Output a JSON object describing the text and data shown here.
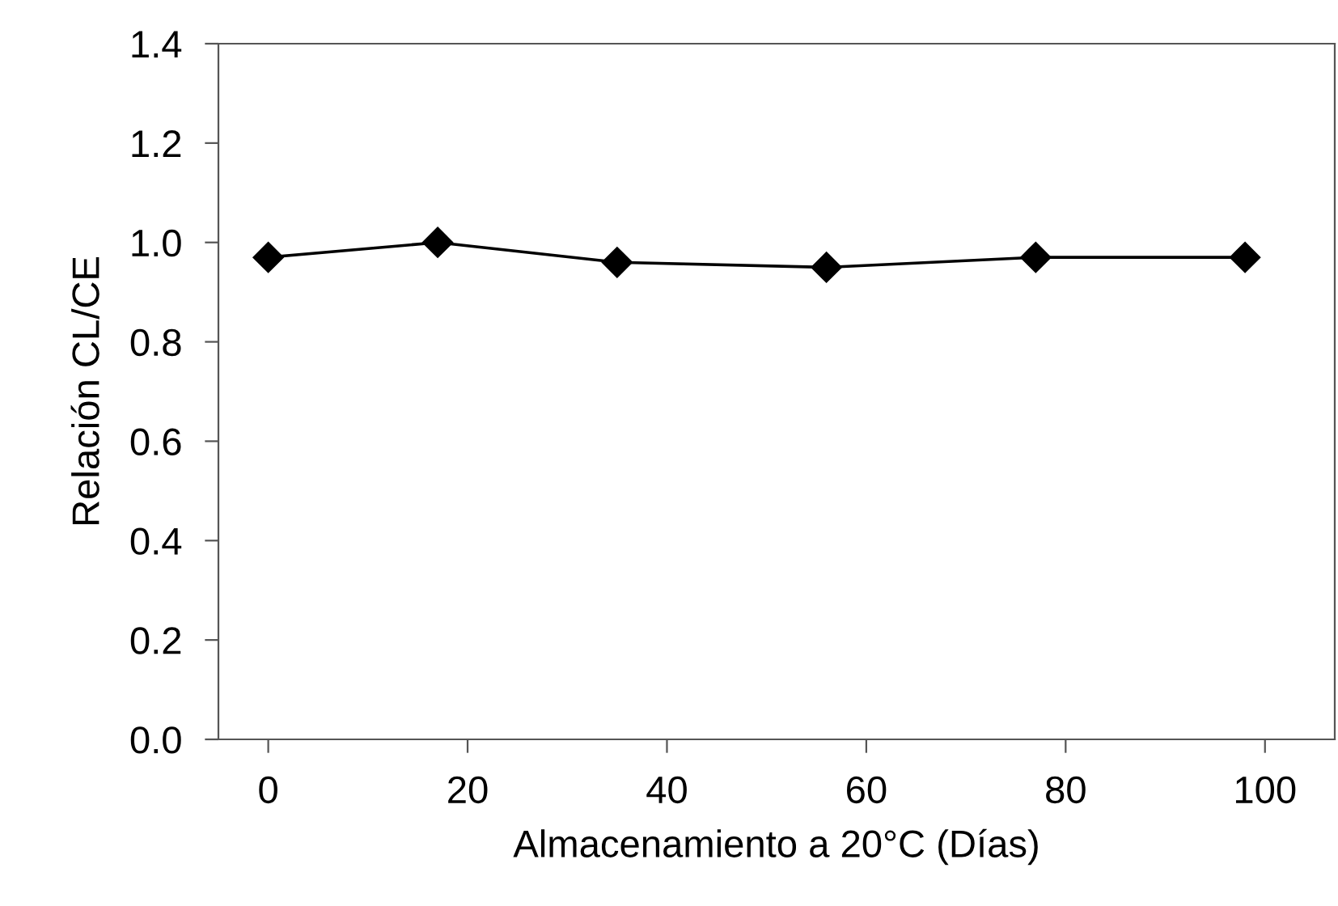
{
  "chart_data": {
    "type": "line",
    "xlabel": "Almacenamiento a 20°C (Días)",
    "ylabel": "Relación CL/CE",
    "x": [
      0,
      17,
      35,
      56,
      77,
      98
    ],
    "series": [
      {
        "color": "#000000",
        "values": [
          0.97,
          1.0,
          0.96,
          0.95,
          0.97,
          0.97
        ]
      }
    ],
    "xlim": [
      -5,
      107
    ],
    "xticks": [
      0,
      20,
      40,
      60,
      80,
      100
    ],
    "ylim": [
      0,
      1.4
    ],
    "yticks": [
      {
        "value": 0,
        "label": "0.0"
      },
      {
        "value": 0.2,
        "label": "0.2"
      },
      {
        "value": 0.4,
        "label": "0.4"
      },
      {
        "value": 0.6,
        "label": "0.6"
      },
      {
        "value": 0.8,
        "label": "0.8"
      },
      {
        "value": 1.0,
        "label": "1.0"
      },
      {
        "value": 1.2,
        "label": "1.2"
      },
      {
        "value": 1.4,
        "label": "1.4"
      }
    ],
    "marker": "diamond",
    "line_style": "solid",
    "grid": false,
    "legend": false
  }
}
